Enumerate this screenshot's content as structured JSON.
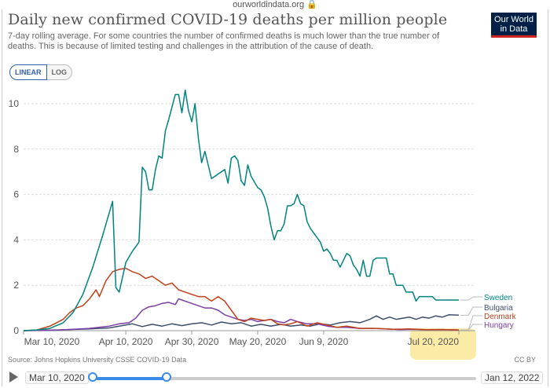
{
  "browser": {
    "url": "ourworldindata.org 🔒"
  },
  "header": {
    "title": "Daily new confirmed COVID-19 deaths per million people",
    "subtitle": "7-day rolling average. For some countries the number of confirmed deaths is much lower than the true number of deaths. This is because of limited testing and challenges in the attribution of the cause of death.",
    "logo_line1": "Our World",
    "logo_line2": "in Data"
  },
  "controls": {
    "linear_label": "LINEAR",
    "log_label": "LOG",
    "active_scale": "linear"
  },
  "footer": {
    "source": "Source: Johns Hopkins University CSSE COVID-19 Data",
    "license": "CC BY"
  },
  "timeline": {
    "start_label": "Mar 10, 2020",
    "end_label": "Jan 12, 2022",
    "selected_start": "Mar 10, 2020",
    "selected_end": "Jul 20, 2020"
  },
  "colors": {
    "sweden": "#00847e",
    "bulgaria": "#3e4f6b",
    "denmark": "#c0421b",
    "hungary": "#7b3fa6",
    "highlight": "#fbe38a",
    "grid": "#dddddd",
    "axis_text": "#555555"
  },
  "chart_data": {
    "type": "line",
    "title": "Daily new confirmed COVID-19 deaths per million people",
    "xlabel": "",
    "ylabel": "",
    "ylim": [
      0,
      10
    ],
    "xlim": [
      "2020-03-10",
      "2020-07-25"
    ],
    "yticks": [
      0,
      2,
      4,
      6,
      8,
      10
    ],
    "xticks": [
      "2020-03-10",
      "2020-04-10",
      "2020-04-30",
      "2020-05-20",
      "2020-06-09",
      "2020-07-20"
    ],
    "xtick_labels": [
      "Mar 10, 2020",
      "Apr 10, 2020",
      "Apr 30, 2020",
      "May 20, 2020",
      "Jun 9, 2020",
      "Jul 20, 2020"
    ],
    "highlighted_tick": "Jul 20, 2020",
    "grid": "horizontal",
    "legend": "right, end-of-line labels",
    "series": [
      {
        "name": "Sweden",
        "color": "#00847e",
        "points": [
          [
            "2020-03-10",
            0
          ],
          [
            "2020-03-14",
            0.03
          ],
          [
            "2020-03-18",
            0.1
          ],
          [
            "2020-03-22",
            0.35
          ],
          [
            "2020-03-25",
            0.8
          ],
          [
            "2020-03-28",
            1.6
          ],
          [
            "2020-03-31",
            2.8
          ],
          [
            "2020-04-03",
            4.2
          ],
          [
            "2020-04-06",
            5.7
          ],
          [
            "2020-04-07",
            1.9
          ],
          [
            "2020-04-08",
            1.7
          ],
          [
            "2020-04-10",
            3.0
          ],
          [
            "2020-04-12",
            3.5
          ],
          [
            "2020-04-14",
            3.9
          ],
          [
            "2020-04-15",
            7.2
          ],
          [
            "2020-04-16",
            7.0
          ],
          [
            "2020-04-17",
            6.2
          ],
          [
            "2020-04-18",
            6.2
          ],
          [
            "2020-04-19",
            7.1
          ],
          [
            "2020-04-20",
            7.7
          ],
          [
            "2020-04-21",
            7.6
          ],
          [
            "2020-04-22",
            8.8
          ],
          [
            "2020-04-23",
            9.3
          ],
          [
            "2020-04-25",
            10.4
          ],
          [
            "2020-04-26",
            10.4
          ],
          [
            "2020-04-27",
            9.6
          ],
          [
            "2020-04-28",
            10.6
          ],
          [
            "2020-04-29",
            9.7
          ],
          [
            "2020-04-30",
            9.2
          ],
          [
            "2020-05-01",
            10.0
          ],
          [
            "2020-05-02",
            8.5
          ],
          [
            "2020-05-03",
            7.4
          ],
          [
            "2020-05-04",
            7.9
          ],
          [
            "2020-05-06",
            6.7
          ],
          [
            "2020-05-08",
            6.9
          ],
          [
            "2020-05-10",
            7.1
          ],
          [
            "2020-05-11",
            6.5
          ],
          [
            "2020-05-12",
            7.6
          ],
          [
            "2020-05-13",
            7.7
          ],
          [
            "2020-05-14",
            7.5
          ],
          [
            "2020-05-15",
            6.6
          ],
          [
            "2020-05-16",
            6.4
          ],
          [
            "2020-05-17",
            7.3
          ],
          [
            "2020-05-18",
            6.8
          ],
          [
            "2020-05-20",
            6.3
          ],
          [
            "2020-05-21",
            6.2
          ],
          [
            "2020-05-22",
            5.9
          ],
          [
            "2020-05-23",
            5.4
          ],
          [
            "2020-05-24",
            4.6
          ],
          [
            "2020-05-25",
            4.0
          ],
          [
            "2020-05-26",
            4.4
          ],
          [
            "2020-05-27",
            4.4
          ],
          [
            "2020-05-28",
            4.7
          ],
          [
            "2020-05-29",
            5.5
          ],
          [
            "2020-05-30",
            5.5
          ],
          [
            "2020-05-31",
            5.6
          ],
          [
            "2020-06-01",
            6.0
          ],
          [
            "2020-06-02",
            5.6
          ],
          [
            "2020-06-03",
            5.5
          ],
          [
            "2020-06-04",
            4.8
          ],
          [
            "2020-06-05",
            4.5
          ],
          [
            "2020-06-06",
            4.3
          ],
          [
            "2020-06-08",
            3.9
          ],
          [
            "2020-06-09",
            3.5
          ],
          [
            "2020-06-10",
            3.6
          ],
          [
            "2020-06-11",
            3.4
          ],
          [
            "2020-06-12",
            3.1
          ],
          [
            "2020-06-13",
            3.1
          ],
          [
            "2020-06-14",
            2.8
          ],
          [
            "2020-06-15",
            3.1
          ],
          [
            "2020-06-16",
            3.4
          ],
          [
            "2020-06-17",
            3.3
          ],
          [
            "2020-06-18",
            2.9
          ],
          [
            "2020-06-19",
            2.7
          ],
          [
            "2020-06-20",
            2.4
          ],
          [
            "2020-06-21",
            3.1
          ],
          [
            "2020-06-22",
            2.4
          ],
          [
            "2020-06-23",
            2.4
          ],
          [
            "2020-06-24",
            3.1
          ],
          [
            "2020-06-25",
            3.2
          ],
          [
            "2020-06-27",
            3.2
          ],
          [
            "2020-06-28",
            3.2
          ],
          [
            "2020-06-29",
            2.5
          ],
          [
            "2020-06-30",
            2.5
          ],
          [
            "2020-07-01",
            2.0
          ],
          [
            "2020-07-02",
            2.0
          ],
          [
            "2020-07-03",
            2.0
          ],
          [
            "2020-07-04",
            1.7
          ],
          [
            "2020-07-06",
            1.7
          ],
          [
            "2020-07-07",
            1.3
          ],
          [
            "2020-07-08",
            1.5
          ],
          [
            "2020-07-10",
            1.5
          ],
          [
            "2020-07-12",
            1.5
          ],
          [
            "2020-07-13",
            1.35
          ],
          [
            "2020-07-16",
            1.35
          ],
          [
            "2020-07-20",
            1.35
          ]
        ]
      },
      {
        "name": "Bulgaria",
        "color": "#3e4f6b",
        "points": [
          [
            "2020-03-10",
            0
          ],
          [
            "2020-03-20",
            0.03
          ],
          [
            "2020-03-30",
            0.08
          ],
          [
            "2020-04-05",
            0.12
          ],
          [
            "2020-04-10",
            0.25
          ],
          [
            "2020-04-12",
            0.3
          ],
          [
            "2020-04-15",
            0.18
          ],
          [
            "2020-04-18",
            0.28
          ],
          [
            "2020-04-21",
            0.2
          ],
          [
            "2020-04-24",
            0.3
          ],
          [
            "2020-04-27",
            0.22
          ],
          [
            "2020-04-30",
            0.3
          ],
          [
            "2020-05-03",
            0.35
          ],
          [
            "2020-05-06",
            0.25
          ],
          [
            "2020-05-09",
            0.38
          ],
          [
            "2020-05-12",
            0.3
          ],
          [
            "2020-05-15",
            0.35
          ],
          [
            "2020-05-18",
            0.2
          ],
          [
            "2020-05-21",
            0.28
          ],
          [
            "2020-05-24",
            0.2
          ],
          [
            "2020-05-27",
            0.28
          ],
          [
            "2020-05-30",
            0.2
          ],
          [
            "2020-06-02",
            0.25
          ],
          [
            "2020-06-05",
            0.2
          ],
          [
            "2020-06-08",
            0.3
          ],
          [
            "2020-06-11",
            0.25
          ],
          [
            "2020-06-14",
            0.35
          ],
          [
            "2020-06-17",
            0.4
          ],
          [
            "2020-06-20",
            0.35
          ],
          [
            "2020-06-23",
            0.5
          ],
          [
            "2020-06-25",
            0.65
          ],
          [
            "2020-06-27",
            0.5
          ],
          [
            "2020-06-29",
            0.6
          ],
          [
            "2020-07-01",
            0.5
          ],
          [
            "2020-07-03",
            0.55
          ],
          [
            "2020-07-05",
            0.6
          ],
          [
            "2020-07-07",
            0.5
          ],
          [
            "2020-07-09",
            0.6
          ],
          [
            "2020-07-11",
            0.55
          ],
          [
            "2020-07-13",
            0.65
          ],
          [
            "2020-07-15",
            0.6
          ],
          [
            "2020-07-17",
            0.7
          ],
          [
            "2020-07-20",
            0.68
          ]
        ]
      },
      {
        "name": "Denmark",
        "color": "#c0421b",
        "points": [
          [
            "2020-03-10",
            0
          ],
          [
            "2020-03-14",
            0.03
          ],
          [
            "2020-03-18",
            0.2
          ],
          [
            "2020-03-20",
            0.35
          ],
          [
            "2020-03-22",
            0.5
          ],
          [
            "2020-03-24",
            0.8
          ],
          [
            "2020-03-26",
            1.0
          ],
          [
            "2020-03-28",
            1.1
          ],
          [
            "2020-03-30",
            1.4
          ],
          [
            "2020-04-01",
            1.8
          ],
          [
            "2020-04-02",
            1.5
          ],
          [
            "2020-04-04",
            2.2
          ],
          [
            "2020-04-06",
            2.6
          ],
          [
            "2020-04-08",
            2.7
          ],
          [
            "2020-04-10",
            2.75
          ],
          [
            "2020-04-12",
            2.6
          ],
          [
            "2020-04-14",
            2.5
          ],
          [
            "2020-04-16",
            2.3
          ],
          [
            "2020-04-18",
            2.4
          ],
          [
            "2020-04-20",
            2.2
          ],
          [
            "2020-04-22",
            2.0
          ],
          [
            "2020-04-24",
            2.1
          ],
          [
            "2020-04-26",
            1.8
          ],
          [
            "2020-04-28",
            1.7
          ],
          [
            "2020-04-30",
            1.6
          ],
          [
            "2020-05-02",
            1.5
          ],
          [
            "2020-05-04",
            1.5
          ],
          [
            "2020-05-06",
            1.3
          ],
          [
            "2020-05-08",
            1.5
          ],
          [
            "2020-05-10",
            1.3
          ],
          [
            "2020-05-12",
            0.9
          ],
          [
            "2020-05-14",
            0.5
          ],
          [
            "2020-05-16",
            0.4
          ],
          [
            "2020-05-18",
            0.55
          ],
          [
            "2020-05-20",
            0.5
          ],
          [
            "2020-05-22",
            0.45
          ],
          [
            "2020-05-24",
            0.5
          ],
          [
            "2020-05-26",
            0.3
          ],
          [
            "2020-05-28",
            0.25
          ],
          [
            "2020-05-30",
            0.3
          ],
          [
            "2020-06-01",
            0.4
          ],
          [
            "2020-06-04",
            0.2
          ],
          [
            "2020-06-07",
            0.35
          ],
          [
            "2020-06-10",
            0.25
          ],
          [
            "2020-06-13",
            0.15
          ],
          [
            "2020-06-16",
            0.2
          ],
          [
            "2020-06-20",
            0.1
          ],
          [
            "2020-06-25",
            0.1
          ],
          [
            "2020-06-30",
            0.06
          ],
          [
            "2020-07-05",
            0.08
          ],
          [
            "2020-07-10",
            0.04
          ],
          [
            "2020-07-15",
            0.05
          ],
          [
            "2020-07-20",
            0.03
          ]
        ]
      },
      {
        "name": "Hungary",
        "color": "#7b3fa6",
        "points": [
          [
            "2020-03-10",
            0
          ],
          [
            "2020-03-20",
            0.02
          ],
          [
            "2020-03-30",
            0.1
          ],
          [
            "2020-04-05",
            0.2
          ],
          [
            "2020-04-08",
            0.3
          ],
          [
            "2020-04-11",
            0.35
          ],
          [
            "2020-04-13",
            0.55
          ],
          [
            "2020-04-15",
            0.9
          ],
          [
            "2020-04-17",
            1.05
          ],
          [
            "2020-04-19",
            1.1
          ],
          [
            "2020-04-21",
            1.2
          ],
          [
            "2020-04-23",
            1.25
          ],
          [
            "2020-04-25",
            1.15
          ],
          [
            "2020-04-26",
            1.4
          ],
          [
            "2020-04-28",
            1.3
          ],
          [
            "2020-04-30",
            1.2
          ],
          [
            "2020-05-02",
            1.1
          ],
          [
            "2020-05-04",
            1.0
          ],
          [
            "2020-05-06",
            1.0
          ],
          [
            "2020-05-08",
            0.9
          ],
          [
            "2020-05-10",
            0.7
          ],
          [
            "2020-05-12",
            0.6
          ],
          [
            "2020-05-14",
            0.5
          ],
          [
            "2020-05-16",
            0.45
          ],
          [
            "2020-05-18",
            0.5
          ],
          [
            "2020-05-20",
            0.4
          ],
          [
            "2020-05-22",
            0.45
          ],
          [
            "2020-05-24",
            0.5
          ],
          [
            "2020-05-26",
            0.4
          ],
          [
            "2020-05-28",
            0.35
          ],
          [
            "2020-05-30",
            0.5
          ],
          [
            "2020-06-01",
            0.4
          ],
          [
            "2020-06-04",
            0.3
          ],
          [
            "2020-06-07",
            0.3
          ],
          [
            "2020-06-10",
            0.2
          ],
          [
            "2020-06-13",
            0.15
          ],
          [
            "2020-06-16",
            0.15
          ],
          [
            "2020-06-20",
            0.1
          ],
          [
            "2020-06-24",
            0.1
          ],
          [
            "2020-06-28",
            0.08
          ],
          [
            "2020-07-02",
            0.05
          ],
          [
            "2020-07-06",
            0.06
          ],
          [
            "2020-07-10",
            0.04
          ],
          [
            "2020-07-15",
            0.05
          ],
          [
            "2020-07-20",
            0.03
          ]
        ]
      }
    ]
  }
}
